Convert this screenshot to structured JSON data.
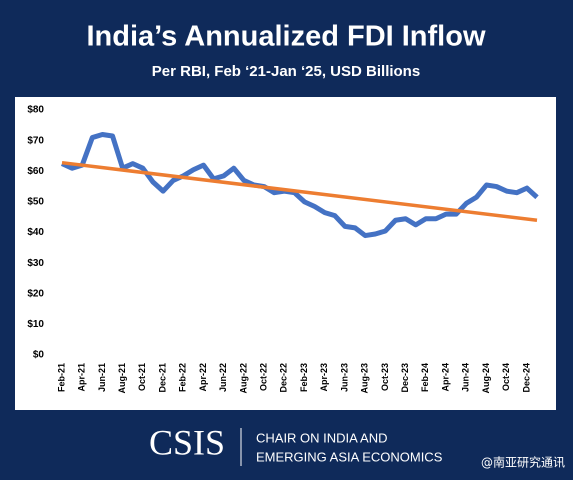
{
  "chart_data": {
    "type": "line",
    "title": "India’s Annualized FDI Inflow",
    "subtitle": "Per RBI, Feb ‘21-Jan ‘25, USD Billions",
    "categories": [
      "Feb-21",
      null,
      "Apr-21",
      null,
      "Jun-21",
      null,
      "Aug-21",
      null,
      "Oct-21",
      null,
      "Dec-21",
      null,
      "Feb-22",
      null,
      "Apr-22",
      null,
      "Jun-22",
      null,
      "Aug-22",
      null,
      "Oct-22",
      null,
      "Dec-22",
      null,
      "Feb-23",
      null,
      "Apr-23",
      null,
      "Jun-23",
      null,
      "Aug-23",
      null,
      "Oct-23",
      null,
      "Dec-23",
      null,
      "Feb-24",
      null,
      "Apr-24",
      null,
      "Jun-24",
      null,
      "Aug-24",
      null,
      "Oct-24",
      null,
      "Dec-24",
      null
    ],
    "series": [
      {
        "color": "#4472c4",
        "values": [
          62.5,
          61,
          62,
          71,
          72,
          71.5,
          61,
          62.5,
          61,
          56.5,
          53.5,
          57,
          58.5,
          60.5,
          62,
          57.5,
          58.5,
          61,
          57,
          55.5,
          55,
          53,
          53.5,
          53,
          50,
          48.5,
          46.5,
          45.5,
          42,
          41.5,
          39,
          39.5,
          40.5,
          44,
          44.5,
          42.5,
          44.5,
          44.5,
          46,
          46,
          49.5,
          51.5,
          55.5,
          55,
          53.5,
          53,
          54.5,
          51.5
        ]
      }
    ],
    "trendline": {
      "color": "#ed7d31",
      "values": [
        62.8,
        44
      ]
    },
    "ylim": [
      0,
      80
    ],
    "yticks": [
      {
        "value": 0,
        "label": "$0"
      },
      {
        "value": 10,
        "label": "$10"
      },
      {
        "value": 20,
        "label": "$20"
      },
      {
        "value": 30,
        "label": "$30"
      },
      {
        "value": 40,
        "label": "$40"
      },
      {
        "value": 50,
        "label": "$50"
      },
      {
        "value": 60,
        "label": "$60"
      },
      {
        "value": 70,
        "label": "$70"
      },
      {
        "value": 80,
        "label": "$80"
      }
    ],
    "grid": false
  },
  "footer": {
    "logo": "CSIS",
    "line1": "CHAIR ON INDIA AND",
    "line2": "EMERGING ASIA ECONOMICS",
    "watermark": "@南亚研究通讯"
  }
}
